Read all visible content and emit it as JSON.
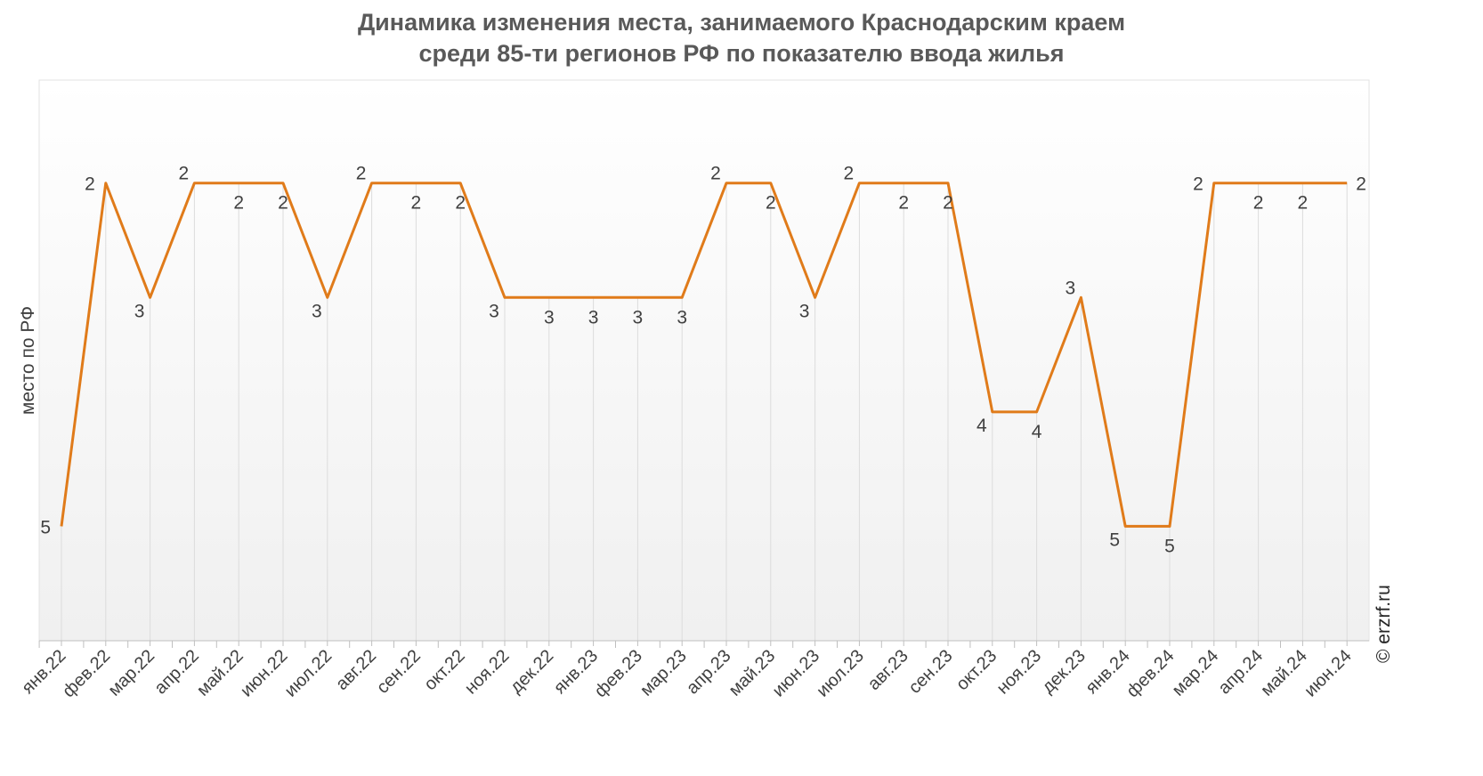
{
  "chart_data": {
    "type": "line",
    "title_line1": "Динамика изменения места, занимаемого Краснодарским краем",
    "title_line2": "среди 85-ти регионов РФ по показателю ввода жилья",
    "xlabel": "",
    "ylabel": "место по РФ",
    "ylim": [
      6,
      1.1
    ],
    "y_reversed": true,
    "grid": "vertical",
    "categories": [
      "янв.22",
      "фев.22",
      "мар.22",
      "апр.22",
      "май.22",
      "июн.22",
      "июл.22",
      "авг.22",
      "сен.22",
      "окт.22",
      "ноя.22",
      "дек.22",
      "янв.23",
      "фев.23",
      "мар.23",
      "апр.23",
      "май.23",
      "июн.23",
      "июл.23",
      "авг.23",
      "сен.23",
      "окт.23",
      "ноя.23",
      "дек.23",
      "янв.24",
      "фев.24",
      "мар.24",
      "апр.24",
      "май.24",
      "июн.24"
    ],
    "series": [
      {
        "color": "#E07B1A",
        "values": [
          5,
          2,
          3,
          2,
          2,
          2,
          3,
          2,
          2,
          2,
          3,
          3,
          3,
          3,
          3,
          2,
          2,
          3,
          2,
          2,
          2,
          4,
          4,
          3,
          5,
          5,
          2,
          2,
          2,
          2
        ],
        "label_positions": [
          "left",
          "left",
          "below-left",
          "above-left",
          "below",
          "below",
          "below-left",
          "above-left",
          "below",
          "below",
          "below-left",
          "below",
          "below",
          "below",
          "below",
          "above-left",
          "below",
          "below-left",
          "above-left",
          "below",
          "below",
          "below-left",
          "below",
          "above-left",
          "below-left",
          "below",
          "left",
          "below",
          "below",
          "right"
        ]
      }
    ],
    "watermark": "© erzrf.ru"
  }
}
